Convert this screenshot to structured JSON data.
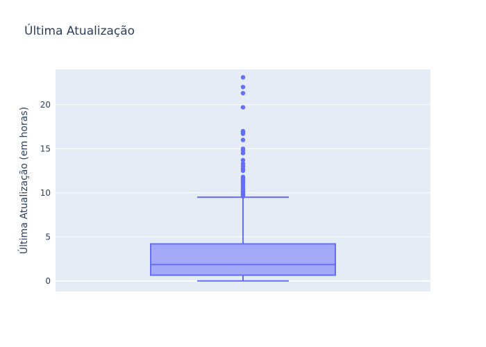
{
  "chart_data": {
    "type": "box",
    "title": "Última Atualização",
    "xlabel": "",
    "ylabel": "Última Atualização (em horas)",
    "ylim": [
      -1.2,
      24.0
    ],
    "yticks": [
      0,
      5,
      10,
      15,
      20
    ],
    "grid": true,
    "legend": "none",
    "box": {
      "min": 0.0,
      "q1": 0.65,
      "median": 1.85,
      "q3": 4.2,
      "upper_fence": 9.5
    },
    "outliers": [
      9.6,
      9.8,
      10.0,
      10.1,
      10.2,
      10.4,
      10.6,
      10.8,
      11.0,
      11.2,
      11.4,
      11.6,
      11.8,
      12.5,
      12.7,
      13.0,
      13.3,
      13.7,
      14.5,
      14.8,
      15.0,
      16.0,
      16.7,
      16.9,
      17.0,
      19.7,
      21.3,
      22.0,
      23.1
    ],
    "colors": {
      "box_line": "#636efa",
      "box_fill": "#a4aaf8",
      "plot_bg": "#e5ecf6",
      "grid": "#ffffff"
    }
  }
}
